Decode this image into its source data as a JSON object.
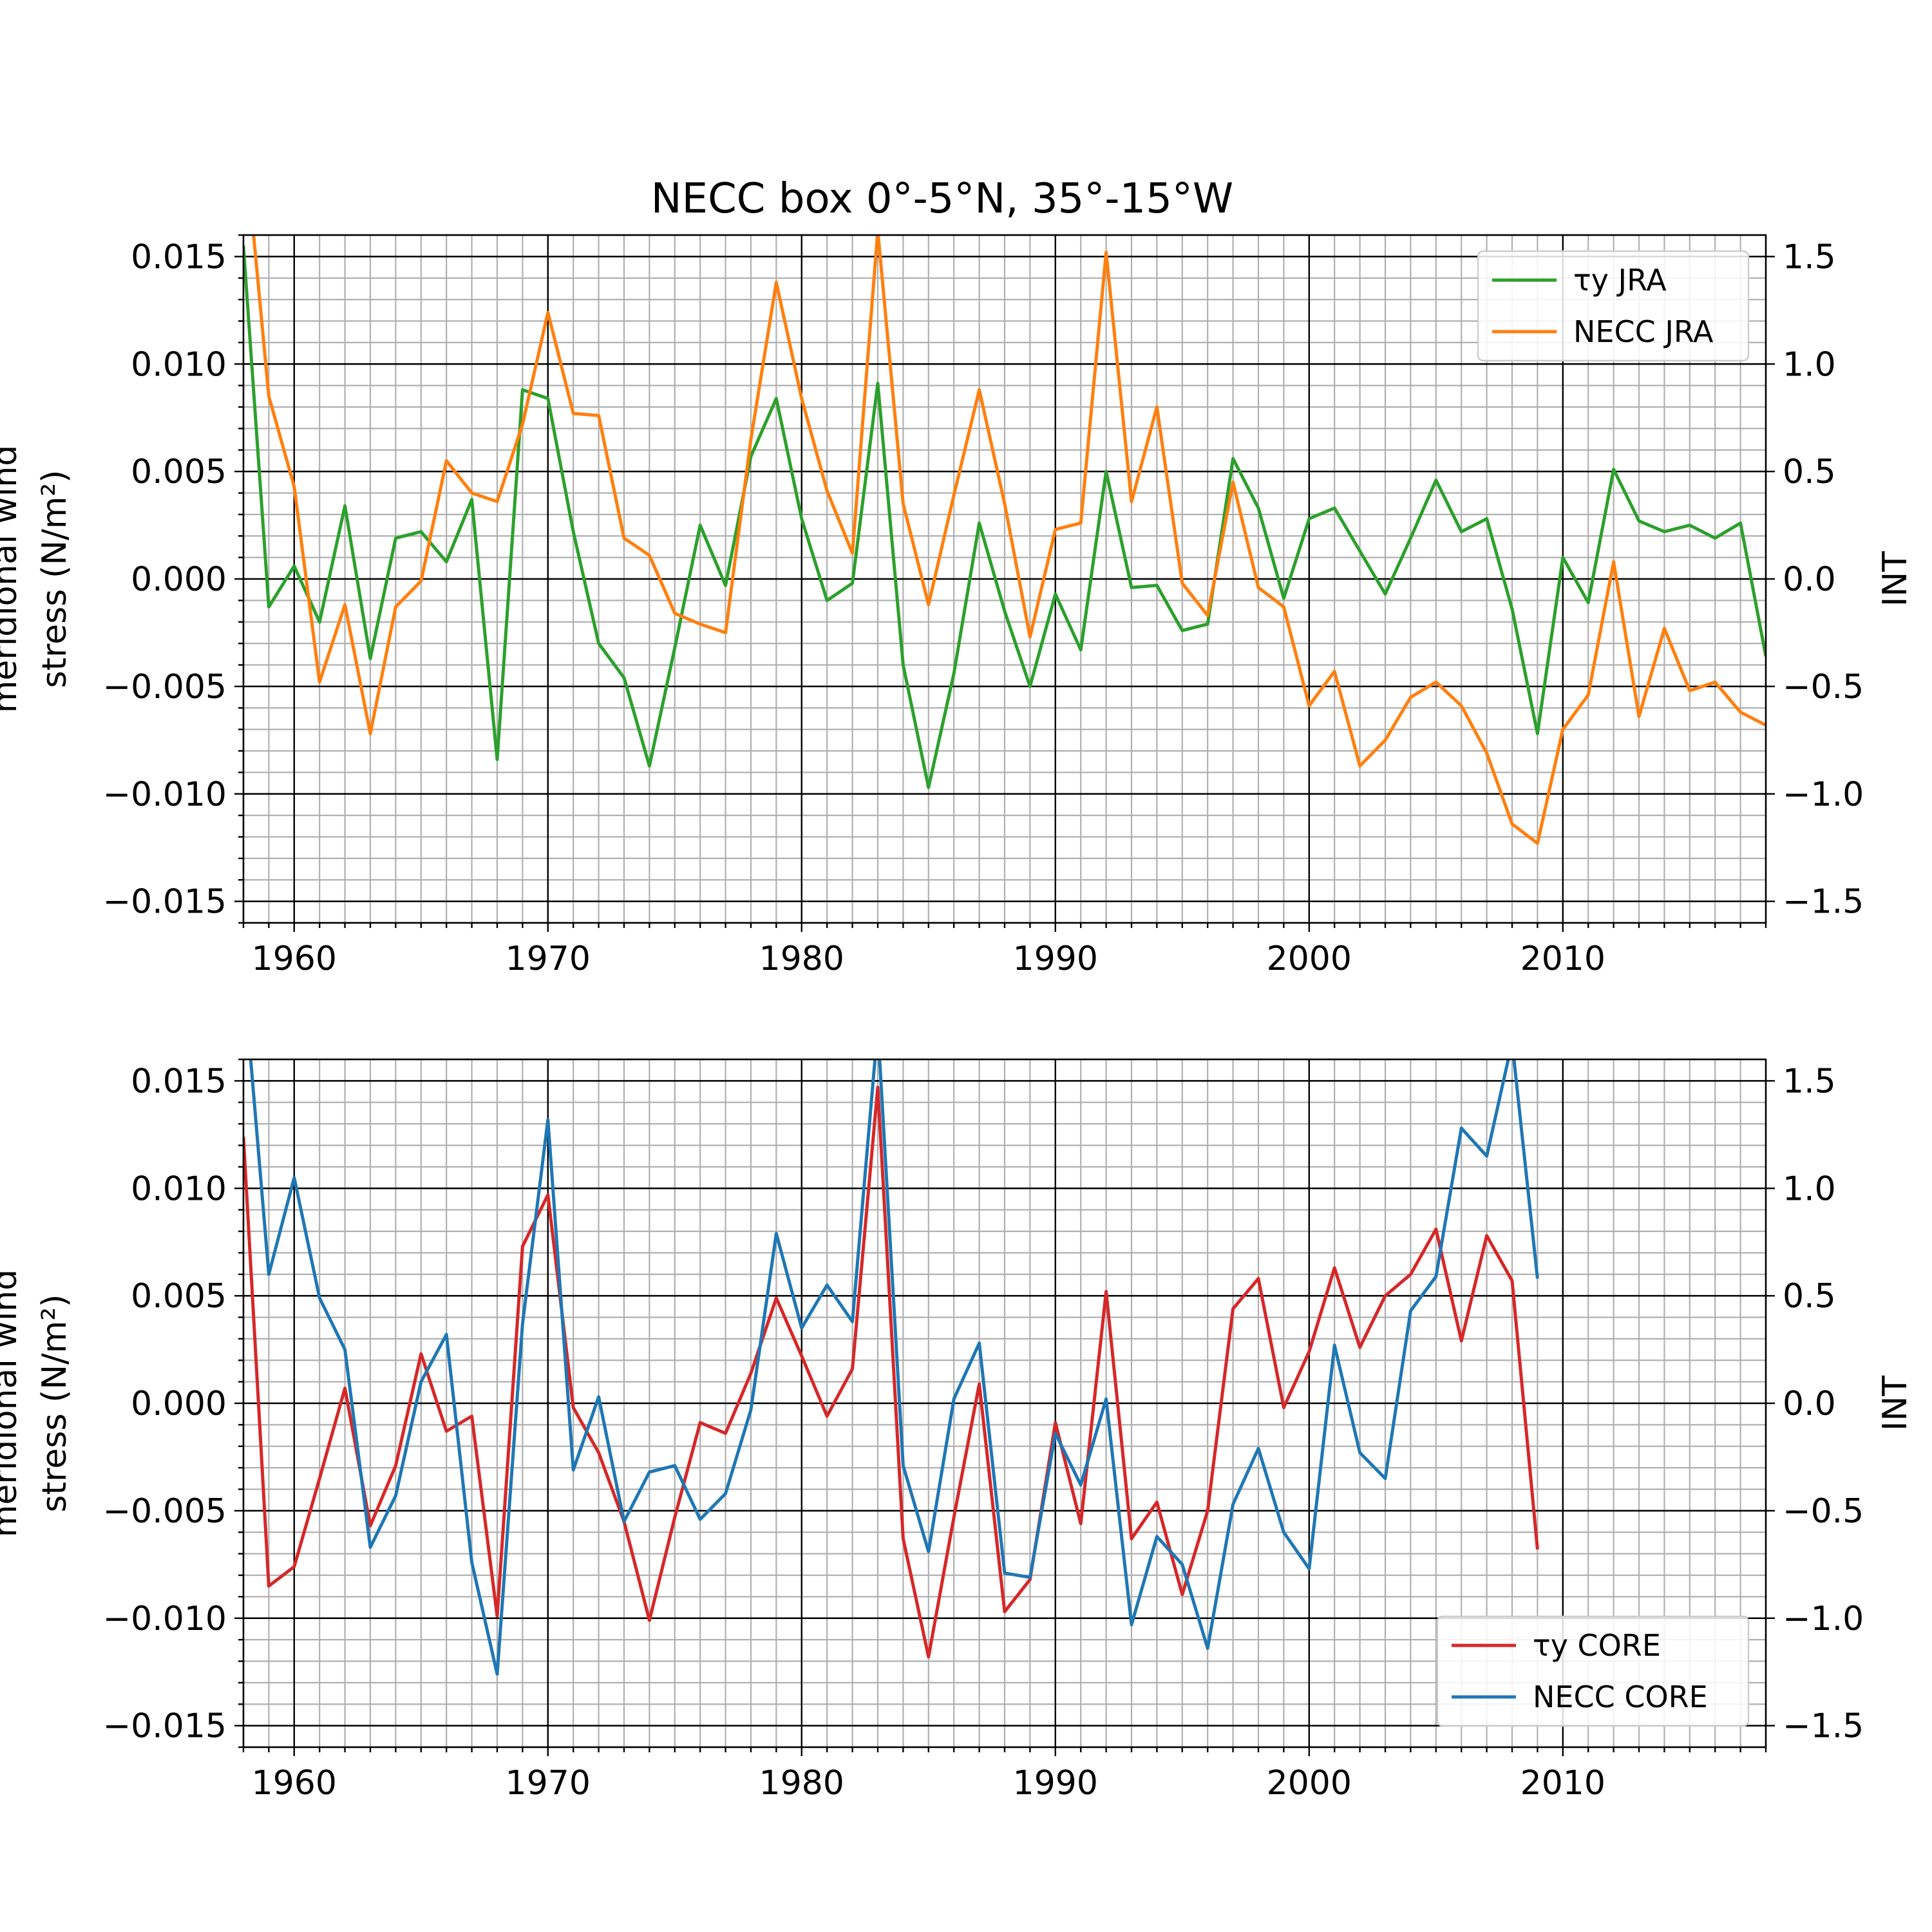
{
  "title": "NECC box 0°-5°N, 35°-15°W",
  "chart_data": [
    {
      "type": "line",
      "ylabel_left": [
        "meridional wind",
        "stress (N/m²)"
      ],
      "ylabel_right": "INT",
      "xlim": [
        1958,
        2018
      ],
      "ylim_left": [
        -0.016,
        0.016
      ],
      "ylim_right": [
        -1.6,
        1.6
      ],
      "x_ticks": [
        "1960",
        "1970",
        "1980",
        "1990",
        "2000",
        "2010"
      ],
      "y_left_ticks": [
        "0.015",
        "0.010",
        "0.005",
        "0.000",
        "−0.005",
        "−0.010",
        "−0.015"
      ],
      "y_right_ticks": [
        "1.5",
        "1.0",
        "0.5",
        "0.0",
        "−0.5",
        "−1.0",
        "−1.5"
      ],
      "grid": true,
      "legend_position": "top-right",
      "series": [
        {
          "name": "τy JRA",
          "axis": "left",
          "color": "#2ca02c",
          "x": [
            1958,
            1959,
            1960,
            1961,
            1962,
            1963,
            1964,
            1965,
            1966,
            1967,
            1968,
            1969,
            1970,
            1971,
            1972,
            1973,
            1974,
            1975,
            1976,
            1977,
            1978,
            1979,
            1980,
            1981,
            1982,
            1983,
            1984,
            1985,
            1986,
            1987,
            1988,
            1989,
            1990,
            1991,
            1992,
            1993,
            1994,
            1995,
            1996,
            1997,
            1998,
            1999,
            2000,
            2001,
            2002,
            2003,
            2004,
            2005,
            2006,
            2007,
            2008,
            2009,
            2010,
            2011,
            2012,
            2013,
            2014,
            2015,
            2016,
            2017,
            2018
          ],
          "values": [
            0.0155,
            -0.0013,
            0.0006,
            -0.002,
            0.0034,
            -0.0037,
            0.0019,
            0.0022,
            0.0008,
            0.0037,
            -0.0084,
            0.0088,
            0.0084,
            0.0022,
            -0.003,
            -0.0046,
            -0.0087,
            -0.0032,
            0.0025,
            -0.0003,
            0.0057,
            0.0084,
            0.0028,
            -0.001,
            -0.0002,
            0.0091,
            -0.004,
            -0.0097,
            -0.0044,
            0.0026,
            -0.0015,
            -0.005,
            -0.0007,
            -0.0033,
            0.005,
            -0.0004,
            -0.0003,
            -0.0024,
            -0.0021,
            0.0056,
            0.0033,
            -0.0009,
            0.0028,
            0.0033,
            0.0013,
            -0.0007,
            0.0019,
            0.0046,
            0.0022,
            0.0028,
            -0.0014,
            -0.0072,
            0.001,
            -0.0011,
            0.0051,
            0.0027,
            0.0022,
            0.0025,
            0.0019,
            0.0026,
            -0.0036
          ]
        },
        {
          "name": "NECC JRA",
          "axis": "right",
          "color": "#ff7f0e",
          "x": [
            1958,
            1959,
            1960,
            1961,
            1962,
            1963,
            1964,
            1965,
            1966,
            1967,
            1968,
            1969,
            1970,
            1971,
            1972,
            1973,
            1974,
            1975,
            1976,
            1977,
            1978,
            1979,
            1980,
            1981,
            1982,
            1983,
            1984,
            1985,
            1986,
            1987,
            1988,
            1989,
            1990,
            1991,
            1992,
            1993,
            1994,
            1995,
            1996,
            1997,
            1998,
            1999,
            2000,
            2001,
            2002,
            2003,
            2004,
            2005,
            2006,
            2007,
            2008,
            2009,
            2010,
            2011,
            2012,
            2013,
            2014,
            2015,
            2016,
            2017,
            2018
          ],
          "values": [
            2.1,
            0.85,
            0.43,
            -0.48,
            -0.12,
            -0.72,
            -0.13,
            -0.01,
            0.55,
            0.4,
            0.36,
            0.72,
            1.24,
            0.77,
            0.76,
            0.19,
            0.11,
            -0.16,
            -0.21,
            -0.25,
            0.65,
            1.38,
            0.84,
            0.41,
            0.12,
            1.62,
            0.35,
            -0.12,
            0.39,
            0.88,
            0.35,
            -0.27,
            0.23,
            0.26,
            1.52,
            0.36,
            0.8,
            -0.02,
            -0.17,
            0.45,
            -0.04,
            -0.13,
            -0.59,
            -0.43,
            -0.87,
            -0.75,
            -0.55,
            -0.48,
            -0.59,
            -0.81,
            -1.14,
            -1.23,
            -0.7,
            -0.54,
            0.08,
            -0.64,
            -0.23,
            -0.52,
            -0.48,
            -0.62,
            -0.68
          ]
        }
      ],
      "legend": [
        "τy JRA",
        "NECC JRA"
      ]
    },
    {
      "type": "line",
      "ylabel_left": [
        "meridional wind",
        "stress (N/m²)"
      ],
      "ylabel_right": "INT",
      "xlim": [
        1958,
        2018
      ],
      "ylim_left": [
        -0.016,
        0.016
      ],
      "ylim_right": [
        -1.6,
        1.6
      ],
      "x_ticks": [
        "1960",
        "1970",
        "1980",
        "1990",
        "2000",
        "2010"
      ],
      "y_left_ticks": [
        "0.015",
        "0.010",
        "0.005",
        "0.000",
        "−0.005",
        "−0.010",
        "−0.015"
      ],
      "y_right_ticks": [
        "1.5",
        "1.0",
        "0.5",
        "0.0",
        "−0.5",
        "−1.0",
        "−1.5"
      ],
      "grid": true,
      "legend_position": "bottom-right",
      "series": [
        {
          "name": "τy CORE",
          "axis": "left",
          "color": "#d62728",
          "x": [
            1958,
            1959,
            1960,
            1961,
            1962,
            1963,
            1964,
            1965,
            1966,
            1967,
            1968,
            1969,
            1970,
            1971,
            1972,
            1973,
            1974,
            1975,
            1976,
            1977,
            1978,
            1979,
            1980,
            1981,
            1982,
            1983,
            1984,
            1985,
            1986,
            1987,
            1988,
            1989,
            1990,
            1991,
            1992,
            1993,
            1994,
            1995,
            1996,
            1997,
            1998,
            1999,
            2000,
            2001,
            2002,
            2003,
            2004,
            2005,
            2006,
            2007,
            2008,
            2009
          ],
          "values": [
            0.0124,
            -0.0085,
            -0.0076,
            -0.0035,
            0.0007,
            -0.0057,
            -0.0029,
            0.0023,
            -0.0013,
            -0.0006,
            -0.0099,
            0.0073,
            0.0097,
            -0.0002,
            -0.0023,
            -0.0055,
            -0.0101,
            -0.0053,
            -0.0009,
            -0.0014,
            0.0014,
            0.0049,
            0.0022,
            -0.0006,
            0.0016,
            0.0147,
            -0.0063,
            -0.0118,
            -0.0053,
            0.0009,
            -0.0097,
            -0.0082,
            -0.0009,
            -0.0056,
            0.0052,
            -0.0063,
            -0.0046,
            -0.0089,
            -0.005,
            0.0044,
            0.0058,
            -0.0002,
            0.0024,
            0.0063,
            0.0026,
            0.005,
            0.006,
            0.0081,
            0.0029,
            0.0078,
            0.0057,
            -0.0068
          ]
        },
        {
          "name": "NECC CORE",
          "axis": "right",
          "color": "#1f77b4",
          "x": [
            1958,
            1959,
            1960,
            1961,
            1962,
            1963,
            1964,
            1965,
            1966,
            1967,
            1968,
            1969,
            1970,
            1971,
            1972,
            1973,
            1974,
            1975,
            1976,
            1977,
            1978,
            1979,
            1980,
            1981,
            1982,
            1983,
            1984,
            1985,
            1986,
            1987,
            1988,
            1989,
            1990,
            1991,
            1992,
            1993,
            1994,
            1995,
            1996,
            1997,
            1998,
            1999,
            2000,
            2001,
            2002,
            2003,
            2004,
            2005,
            2006,
            2007,
            2008,
            2009
          ],
          "values": [
            2.0,
            0.6,
            1.05,
            0.49,
            0.25,
            -0.67,
            -0.43,
            0.1,
            0.32,
            -0.74,
            -1.26,
            0.37,
            1.32,
            -0.31,
            0.03,
            -0.55,
            -0.32,
            -0.29,
            -0.54,
            -0.42,
            -0.03,
            0.79,
            0.35,
            0.55,
            0.38,
            1.75,
            -0.29,
            -0.69,
            0.02,
            0.28,
            -0.79,
            -0.81,
            -0.14,
            -0.38,
            0.02,
            -1.03,
            -0.62,
            -0.75,
            -1.14,
            -0.47,
            -0.21,
            -0.6,
            -0.77,
            0.27,
            -0.23,
            -0.35,
            0.43,
            0.59,
            1.28,
            1.15,
            1.68,
            0.58
          ]
        }
      ],
      "legend": [
        "τy CORE",
        "NECC CORE"
      ]
    }
  ]
}
